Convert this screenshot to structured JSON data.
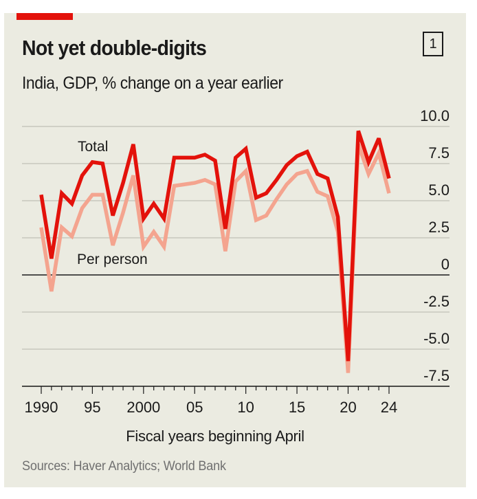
{
  "header": {
    "title": "Not yet double-digits",
    "chart_number": "1",
    "subtitle": "India, GDP, % change on a year earlier"
  },
  "footer": {
    "source": "Sources: Haver Analytics; World Bank"
  },
  "colors": {
    "total": "#e3120b",
    "per_person": "#f4a48f",
    "brand_red": "#e3120b",
    "background": "#ebebe1"
  },
  "chart_data": {
    "type": "line",
    "title": "Not yet double-digits",
    "subtitle": "India, GDP, % change on a year earlier",
    "xlabel": "Fiscal years beginning April",
    "ylabel": "",
    "x": [
      1990,
      1991,
      1992,
      1993,
      1994,
      1995,
      1996,
      1997,
      1998,
      1999,
      2000,
      2001,
      2002,
      2003,
      2004,
      2005,
      2006,
      2007,
      2008,
      2009,
      2010,
      2011,
      2012,
      2013,
      2014,
      2015,
      2016,
      2017,
      2018,
      2019,
      2020,
      2021,
      2022,
      2023,
      2024
    ],
    "series": [
      {
        "name": "Total",
        "values": [
          5.4,
          1.1,
          5.5,
          4.8,
          6.7,
          7.6,
          7.5,
          4.0,
          6.2,
          8.8,
          3.8,
          4.8,
          3.8,
          7.9,
          7.9,
          7.9,
          8.1,
          7.7,
          3.1,
          7.9,
          8.5,
          5.2,
          5.5,
          6.4,
          7.4,
          8.0,
          8.3,
          6.8,
          6.5,
          3.9,
          -5.8,
          9.7,
          7.6,
          9.2,
          6.5
        ]
      },
      {
        "name": "Per person",
        "values": [
          3.2,
          -1.1,
          3.2,
          2.6,
          4.5,
          5.4,
          5.4,
          2.0,
          4.2,
          6.7,
          1.9,
          2.9,
          1.9,
          6.0,
          6.1,
          6.2,
          6.4,
          6.1,
          1.6,
          6.3,
          7.0,
          3.7,
          4.0,
          5.1,
          6.1,
          6.8,
          7.0,
          5.6,
          5.3,
          2.9,
          -6.6,
          8.8,
          6.8,
          8.2,
          5.5
        ]
      }
    ],
    "x_ticks": [
      {
        "value": 1990,
        "label": "1990"
      },
      {
        "value": 1995,
        "label": "95"
      },
      {
        "value": 2000,
        "label": "2000"
      },
      {
        "value": 2005,
        "label": "05"
      },
      {
        "value": 2010,
        "label": "10"
      },
      {
        "value": 2015,
        "label": "15"
      },
      {
        "value": 2020,
        "label": "20"
      },
      {
        "value": 2024,
        "label": "24"
      }
    ],
    "y_ticks": [
      {
        "value": 10,
        "label": "10.0"
      },
      {
        "value": 7.5,
        "label": "7.5"
      },
      {
        "value": 5,
        "label": "5.0"
      },
      {
        "value": 2.5,
        "label": "2.5"
      },
      {
        "value": 0,
        "label": "0"
      },
      {
        "value": -2.5,
        "label": "-2.5"
      },
      {
        "value": -5,
        "label": "-5.0"
      },
      {
        "value": -7.5,
        "label": "-7.5"
      }
    ],
    "ylim": [
      -7.5,
      10
    ],
    "xlim": [
      1990,
      2024
    ],
    "grid": true,
    "y_axis_side": "right",
    "annotations": [
      {
        "text": "Total",
        "series": "Total",
        "placement": "above line near 1995"
      },
      {
        "text": "Per person",
        "series": "Per person",
        "placement": "below line near 1995"
      }
    ]
  }
}
